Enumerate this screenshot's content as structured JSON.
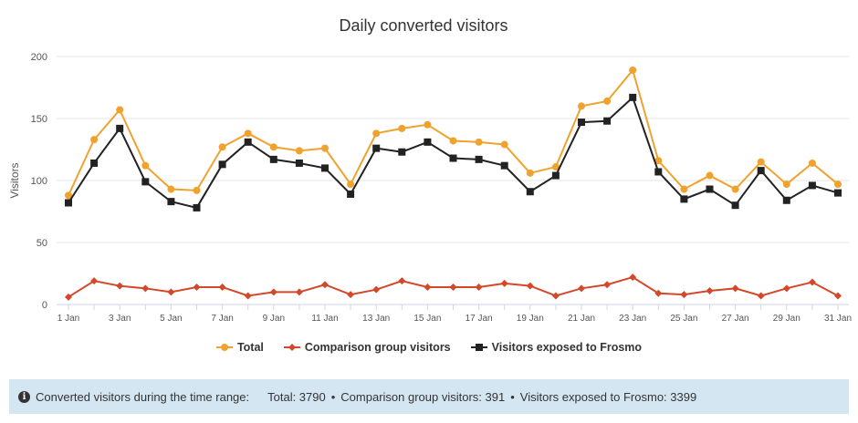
{
  "chart_data": {
    "type": "line",
    "title": "Daily converted visitors",
    "ylabel": "Visitors",
    "xlabel": "",
    "ylim": [
      0,
      200
    ],
    "yticks": [
      0,
      50,
      100,
      150,
      200
    ],
    "grid": true,
    "legend_placement": "bottom",
    "categories": [
      "1 Jan",
      "2 Jan",
      "3 Jan",
      "4 Jan",
      "5 Jan",
      "6 Jan",
      "7 Jan",
      "8 Jan",
      "9 Jan",
      "10 Jan",
      "11 Jan",
      "12 Jan",
      "13 Jan",
      "14 Jan",
      "15 Jan",
      "16 Jan",
      "17 Jan",
      "18 Jan",
      "19 Jan",
      "20 Jan",
      "21 Jan",
      "22 Jan",
      "23 Jan",
      "24 Jan",
      "25 Jan",
      "26 Jan",
      "27 Jan",
      "28 Jan",
      "29 Jan",
      "30 Jan",
      "31 Jan"
    ],
    "xtick_labels": [
      "1 Jan",
      "3 Jan",
      "5 Jan",
      "7 Jan",
      "9 Jan",
      "11 Jan",
      "13 Jan",
      "15 Jan",
      "17 Jan",
      "19 Jan",
      "21 Jan",
      "23 Jan",
      "25 Jan",
      "27 Jan",
      "29 Jan",
      "31 Jan"
    ],
    "series": [
      {
        "name": "Total",
        "color": "#f0a22e",
        "marker": "circle",
        "values": [
          88,
          133,
          157,
          112,
          93,
          92,
          127,
          138,
          127,
          124,
          126,
          97,
          138,
          142,
          145,
          132,
          131,
          129,
          106,
          111,
          160,
          164,
          189,
          116,
          93,
          104,
          93,
          115,
          97,
          114,
          97
        ]
      },
      {
        "name": "Comparison group visitors",
        "color": "#d4482a",
        "marker": "diamond",
        "values": [
          6,
          19,
          15,
          13,
          10,
          14,
          14,
          7,
          10,
          10,
          16,
          8,
          12,
          19,
          14,
          14,
          14,
          17,
          15,
          7,
          13,
          16,
          22,
          9,
          8,
          11,
          13,
          7,
          13,
          18,
          7
        ]
      },
      {
        "name": "Visitors exposed to Frosmo",
        "color": "#222222",
        "marker": "square",
        "values": [
          82,
          114,
          142,
          99,
          83,
          78,
          113,
          131,
          117,
          114,
          110,
          89,
          126,
          123,
          131,
          118,
          117,
          112,
          91,
          104,
          147,
          148,
          167,
          107,
          85,
          93,
          80,
          108,
          84,
          96,
          90
        ]
      }
    ]
  },
  "footer": {
    "icon": "info-icon",
    "label": "Converted visitors during the time range:",
    "total": "Total: 3790",
    "comparison": "Comparison group visitors: 391",
    "exposed": "Visitors exposed to Frosmo: 3399",
    "separator": "•",
    "background": "#d5e6f3"
  }
}
